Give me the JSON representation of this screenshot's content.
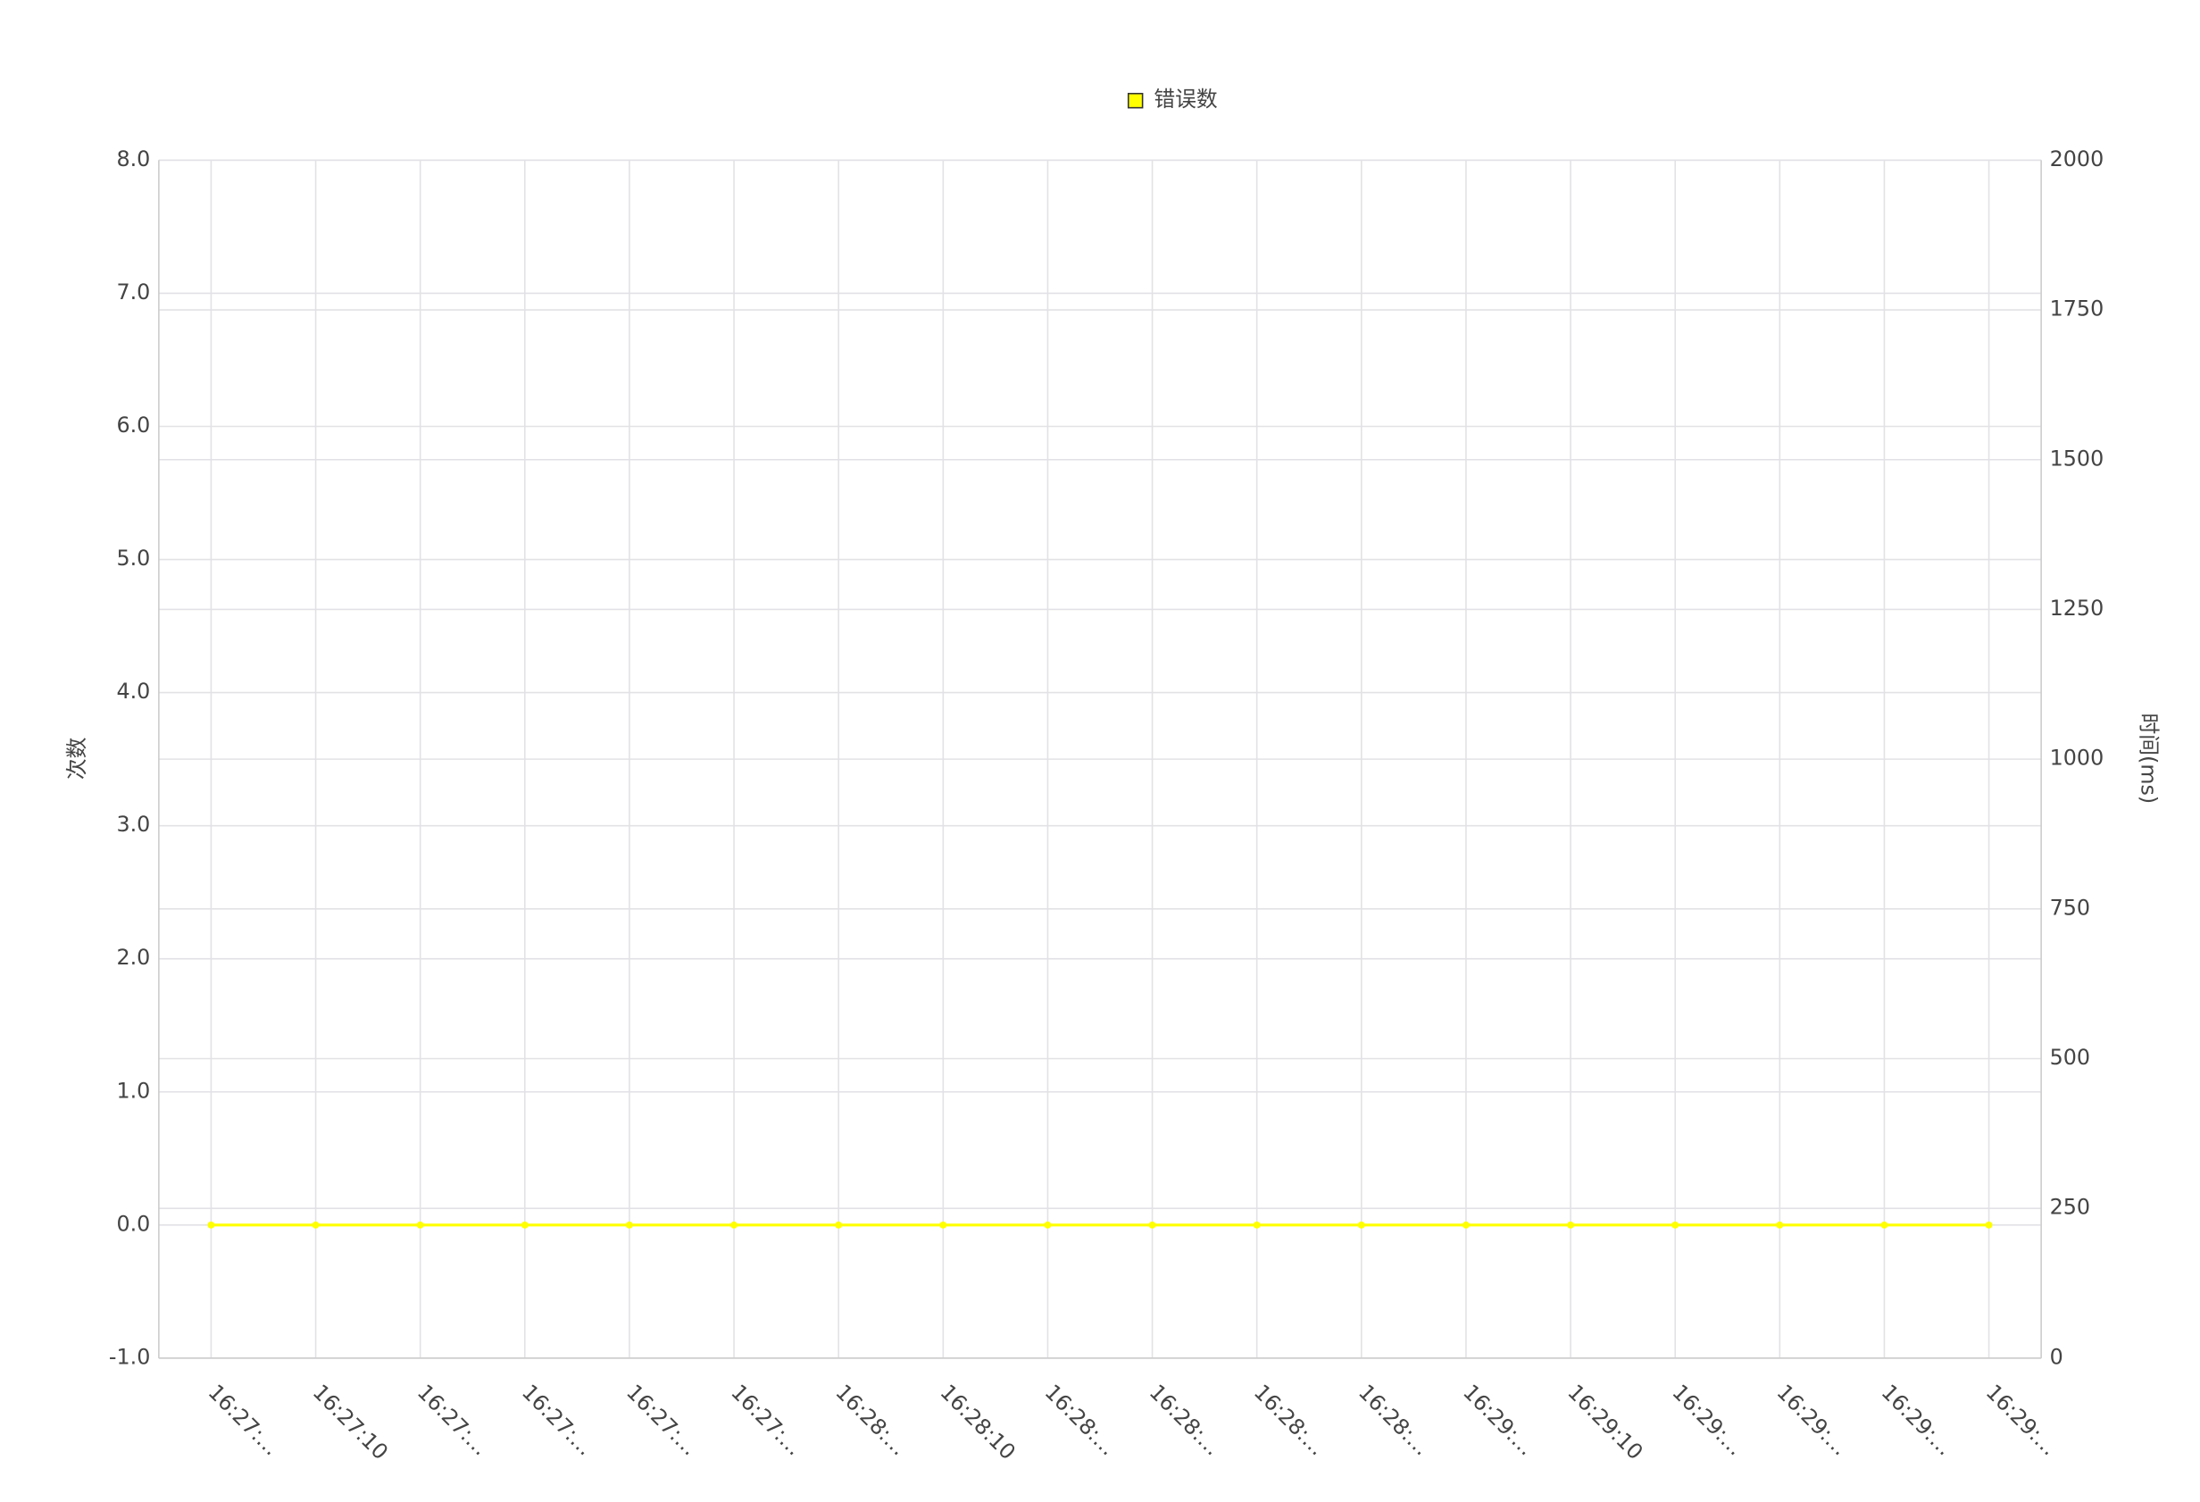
{
  "chart_data": {
    "type": "line",
    "legend": "top",
    "grid": true,
    "y_label": "次数",
    "y2_label": "时间(ms)",
    "categories": [
      "16:27:…",
      "16:27:10",
      "16:27:…",
      "16:27:…",
      "16:27:…",
      "16:27:…",
      "16:28:…",
      "16:28:10",
      "16:28:…",
      "16:28:…",
      "16:28:…",
      "16:28:…",
      "16:29:…",
      "16:29:10",
      "16:29:…",
      "16:29:…",
      "16:29:…",
      "16:29:…"
    ],
    "series": [
      {
        "name": "错误数",
        "color": "#ffff00",
        "values": [
          0,
          0,
          0,
          0,
          0,
          0,
          0,
          0,
          0,
          0,
          0,
          0,
          0,
          0,
          0,
          0,
          0,
          0
        ]
      }
    ],
    "ylim": [
      -1,
      8
    ],
    "yticks": [
      {
        "value": -1,
        "label": "-1.0"
      },
      {
        "value": 0,
        "label": "0.0"
      },
      {
        "value": 1,
        "label": "1.0"
      },
      {
        "value": 2,
        "label": "2.0"
      },
      {
        "value": 3,
        "label": "3.0"
      },
      {
        "value": 4,
        "label": "4.0"
      },
      {
        "value": 5,
        "label": "5.0"
      },
      {
        "value": 6,
        "label": "6.0"
      },
      {
        "value": 7,
        "label": "7.0"
      },
      {
        "value": 8,
        "label": "8.0"
      }
    ],
    "y2lim": [
      0,
      2000
    ],
    "y2ticks": [
      0,
      250,
      500,
      750,
      1000,
      1250,
      1500,
      1750,
      2000
    ]
  }
}
